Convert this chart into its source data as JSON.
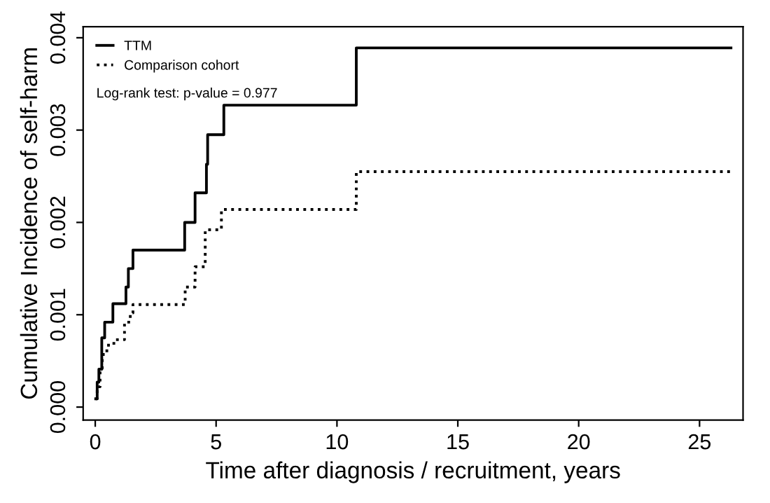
{
  "chart_data": {
    "type": "step",
    "xlabel": "Time after diagnosis / recruitment, years",
    "ylabel": "Cumulative Incidence of self-harm",
    "annotations": [
      "Log-rank test: p-value = 0.977"
    ],
    "series": [
      {
        "name": "TTM",
        "color": "#000000",
        "line_style": "solid",
        "x": [
          0.02,
          0.08,
          0.15,
          0.27,
          0.39,
          0.73,
          1.27,
          1.37,
          1.56,
          3.7,
          4.13,
          4.6,
          4.65,
          5.32,
          10.8,
          26.3
        ],
        "values": [
          9e-05,
          0.00027,
          0.00041,
          0.00075,
          0.00092,
          0.00112,
          0.0013,
          0.0015,
          0.0017,
          0.002,
          0.00232,
          0.00263,
          0.00295,
          0.00327,
          0.00389,
          0.00389
        ]
      },
      {
        "name": "Comparison cohort",
        "color": "#000000",
        "line_style": "dotted",
        "x": [
          0.02,
          0.08,
          0.2,
          0.29,
          0.48,
          0.77,
          1.21,
          1.45,
          1.56,
          3.72,
          4.13,
          4.55,
          5.22,
          10.8,
          26.3
        ],
        "values": [
          9e-05,
          0.00022,
          0.00042,
          0.00057,
          0.00067,
          0.00073,
          0.00092,
          0.00102,
          0.00111,
          0.0013,
          0.00152,
          0.00192,
          0.00214,
          0.00255,
          0.00255
        ]
      }
    ],
    "xlim": [
      -0.5,
      26.8
    ],
    "ylim": [
      -0.00014,
      0.00412
    ],
    "xticks": [
      0,
      5,
      10,
      15,
      20,
      25
    ],
    "yticks": [
      {
        "value": 0,
        "label": "0.000"
      },
      {
        "value": 0.001,
        "label": "0.001"
      },
      {
        "value": 0.002,
        "label": "0.002"
      },
      {
        "value": 0.003,
        "label": "0.003"
      },
      {
        "value": 0.004,
        "label": "0.004"
      }
    ],
    "grid": false,
    "legend": "top left"
  }
}
